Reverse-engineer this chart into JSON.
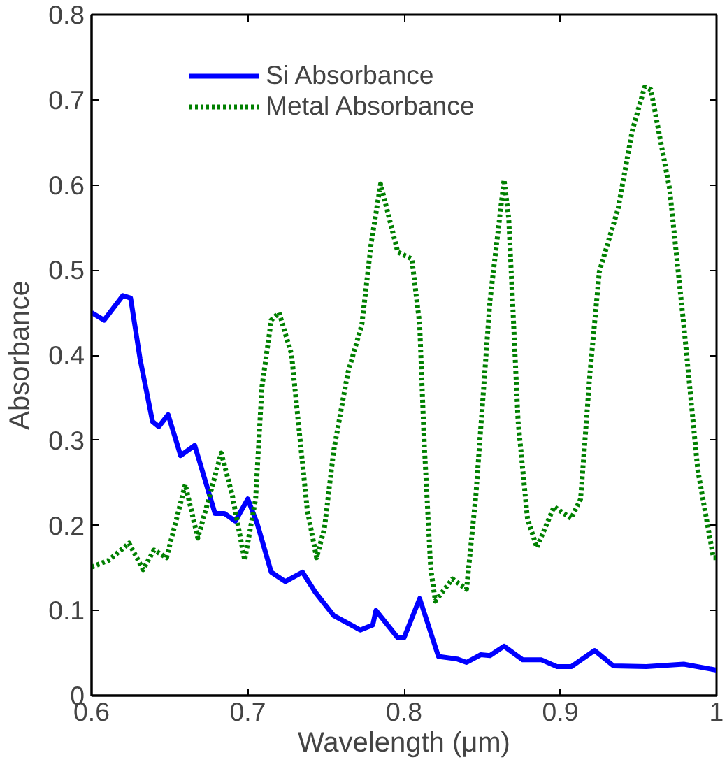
{
  "chart_data": {
    "type": "line",
    "xlabel": "Wavelength (μm)",
    "ylabel": "Absorbance",
    "xlim": [
      0.6,
      1.0
    ],
    "xticks": [
      0.6,
      0.7,
      0.8,
      0.9,
      1
    ],
    "ylim": [
      0,
      0.8
    ],
    "yticks": [
      0,
      0.1,
      0.2,
      0.3,
      0.4,
      0.5,
      0.6,
      0.7,
      0.8
    ],
    "grid": false,
    "legend": "top left",
    "series": [
      {
        "name": "Si Absorbance",
        "color": "#0000ff",
        "line_style": "solid",
        "x": [
          0.6,
          0.608,
          0.62,
          0.625,
          0.631,
          0.639,
          0.643,
          0.649,
          0.657,
          0.666,
          0.679,
          0.685,
          0.692,
          0.7,
          0.706,
          0.715,
          0.724,
          0.735,
          0.743,
          0.755,
          0.772,
          0.78,
          0.782,
          0.796,
          0.8,
          0.81,
          0.822,
          0.834,
          0.84,
          0.849,
          0.855,
          0.864,
          0.876,
          0.888,
          0.898,
          0.907,
          0.922,
          0.934,
          0.955,
          0.979,
          1.0
        ],
        "values": [
          0.45,
          0.441,
          0.47,
          0.467,
          0.396,
          0.322,
          0.316,
          0.33,
          0.282,
          0.294,
          0.214,
          0.214,
          0.205,
          0.231,
          0.202,
          0.145,
          0.134,
          0.145,
          0.122,
          0.094,
          0.077,
          0.083,
          0.1,
          0.068,
          0.068,
          0.114,
          0.046,
          0.043,
          0.039,
          0.048,
          0.047,
          0.058,
          0.042,
          0.042,
          0.034,
          0.034,
          0.053,
          0.035,
          0.034,
          0.037,
          0.03
        ]
      },
      {
        "name": "Metal Absorbance",
        "color": "#008000",
        "line_style": "dotted",
        "x": [
          0.6,
          0.611,
          0.624,
          0.633,
          0.64,
          0.648,
          0.66,
          0.668,
          0.675,
          0.683,
          0.69,
          0.698,
          0.705,
          0.709,
          0.715,
          0.72,
          0.728,
          0.732,
          0.738,
          0.744,
          0.749,
          0.755,
          0.764,
          0.773,
          0.779,
          0.785,
          0.796,
          0.805,
          0.81,
          0.813,
          0.817,
          0.82,
          0.831,
          0.84,
          0.846,
          0.855,
          0.864,
          0.867,
          0.873,
          0.879,
          0.885,
          0.896,
          0.907,
          0.913,
          0.919,
          0.925,
          0.937,
          0.946,
          0.954,
          0.958,
          0.97,
          0.979,
          0.988,
          0.998,
          1.0
        ],
        "values": [
          0.151,
          0.159,
          0.179,
          0.148,
          0.171,
          0.162,
          0.248,
          0.185,
          0.231,
          0.285,
          0.236,
          0.159,
          0.231,
          0.362,
          0.441,
          0.45,
          0.401,
          0.327,
          0.219,
          0.162,
          0.196,
          0.288,
          0.379,
          0.436,
          0.532,
          0.601,
          0.521,
          0.513,
          0.436,
          0.293,
          0.151,
          0.111,
          0.137,
          0.125,
          0.236,
          0.464,
          0.606,
          0.561,
          0.322,
          0.208,
          0.174,
          0.222,
          0.208,
          0.231,
          0.379,
          0.498,
          0.572,
          0.663,
          0.715,
          0.712,
          0.595,
          0.436,
          0.265,
          0.162,
          0.162
        ]
      }
    ]
  }
}
